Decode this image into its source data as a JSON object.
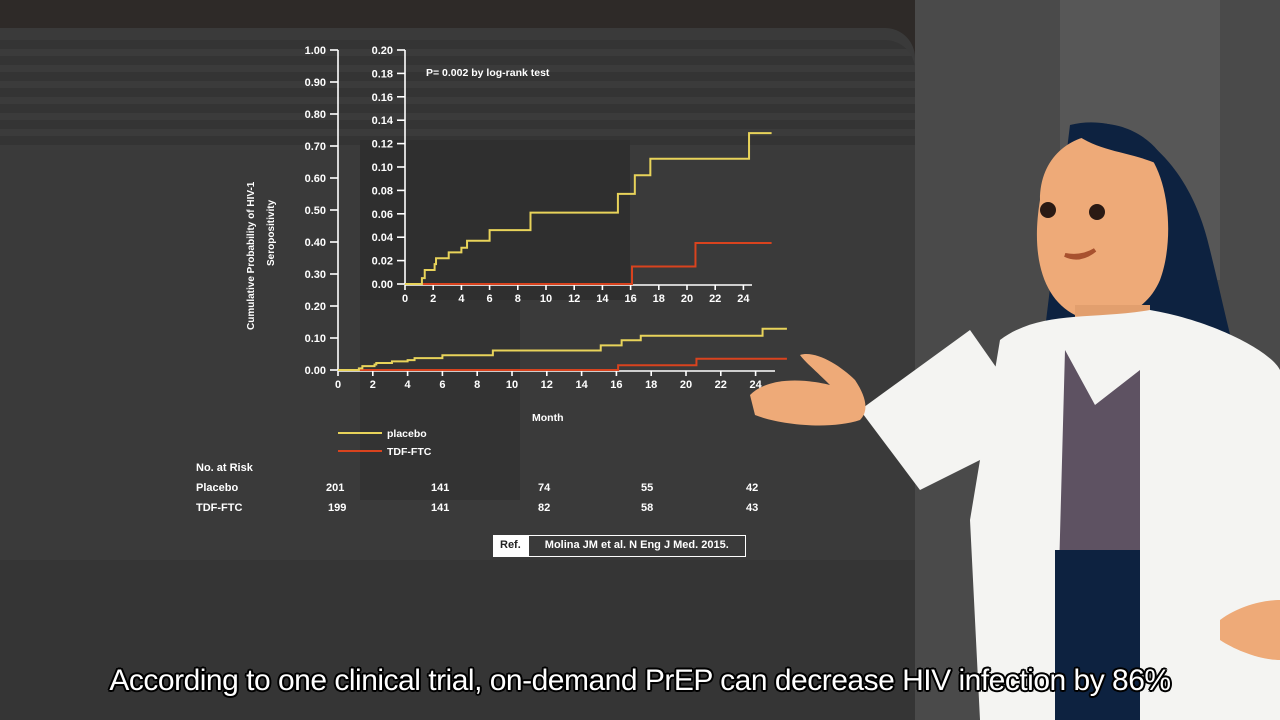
{
  "subtitle": "According to one clinical trial, on-demand PrEP can decrease HIV infection by 86%",
  "annotation": "P=  0.002 by log-rank test",
  "y_label_line1": "Cumulative Probability of HIV-1",
  "y_label_line2": "Seropositivity",
  "x_label": "Month",
  "legend": [
    {
      "label": "placebo",
      "color": "#e8d35a"
    },
    {
      "label": "TDF-FTC",
      "color": "#d9431e"
    }
  ],
  "risk_table": {
    "title": "No. at Risk",
    "rows": [
      {
        "label": "Placebo",
        "values": [
          "201",
          "141",
          "74",
          "55",
          "42"
        ]
      },
      {
        "label": "TDF-FTC",
        "values": [
          "199",
          "141",
          "82",
          "58",
          "43"
        ]
      }
    ]
  },
  "reference": {
    "key": "Ref.",
    "text": "Molina JM et al. N Eng J Med. 2015."
  },
  "chart_data": [
    {
      "type": "line",
      "title": "Cumulative Probability of HIV-1 Seropositivity (full scale)",
      "xlabel": "Month",
      "ylabel": "Cumulative Probability of HIV-1 Seropositivity",
      "xlim": [
        0,
        25.5
      ],
      "ylim": [
        0,
        1.0
      ],
      "x_ticks": [
        "0",
        "2",
        "4",
        "6",
        "8",
        "10",
        "12",
        "14",
        "16",
        "18",
        "20",
        "22",
        "24"
      ],
      "y_ticks": [
        "0.00",
        "0.10",
        "0.20",
        "0.30",
        "0.40",
        "0.50",
        "0.60",
        "0.70",
        "0.80",
        "0.90",
        "1.00"
      ],
      "step": true,
      "series": [
        {
          "name": "placebo",
          "color": "#e8d35a",
          "x": [
            0,
            1.2,
            1.4,
            2.1,
            2.2,
            3.1,
            4.0,
            4.4,
            6.0,
            8.9,
            15.1,
            16.3,
            17.4,
            24.4,
            26
          ],
          "y": [
            0,
            0.005,
            0.012,
            0.017,
            0.022,
            0.027,
            0.031,
            0.037,
            0.046,
            0.061,
            0.077,
            0.093,
            0.107,
            0.129,
            0.129
          ]
        },
        {
          "name": "TDF-FTC",
          "color": "#d9431e",
          "x": [
            0,
            16.1,
            20.6,
            26
          ],
          "y": [
            0,
            0.015,
            0.035,
            0.035
          ]
        }
      ],
      "legend_position": "below"
    },
    {
      "type": "line",
      "title": "Inset (zoomed y-axis)",
      "xlim": [
        0,
        24
      ],
      "ylim": [
        0,
        0.2
      ],
      "x_ticks": [
        "0",
        "2",
        "4",
        "6",
        "8",
        "10",
        "12",
        "14",
        "16",
        "18",
        "20",
        "22",
        "24"
      ],
      "y_ticks": [
        "0.00",
        "0.02",
        "0.04",
        "0.06",
        "0.08",
        "0.10",
        "0.12",
        "0.14",
        "0.16",
        "0.18",
        "0.20"
      ],
      "step": true,
      "series": [
        {
          "name": "placebo",
          "color": "#e8d35a",
          "x": [
            0,
            1.2,
            1.4,
            2.1,
            2.2,
            3.1,
            4.0,
            4.4,
            6.0,
            8.9,
            15.1,
            16.3,
            17.4,
            24.4,
            26
          ],
          "y": [
            0,
            0.005,
            0.012,
            0.017,
            0.022,
            0.027,
            0.031,
            0.037,
            0.046,
            0.061,
            0.077,
            0.093,
            0.107,
            0.129,
            0.129
          ]
        },
        {
          "name": "TDF-FTC",
          "color": "#d9431e",
          "x": [
            0,
            16.1,
            20.6,
            26
          ],
          "y": [
            0,
            0.015,
            0.035,
            0.035
          ]
        }
      ],
      "annotation": "P= 0.002 by log-rank test"
    }
  ]
}
